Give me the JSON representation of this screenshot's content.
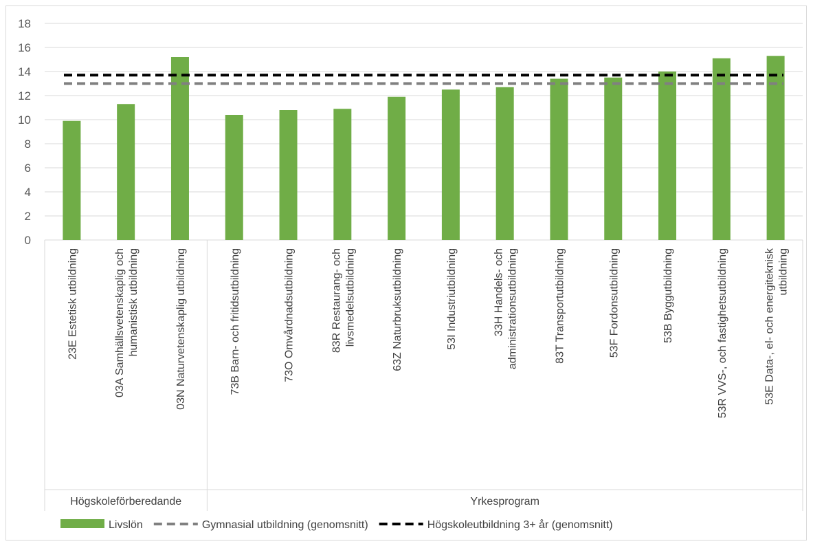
{
  "chart_data": {
    "type": "bar",
    "ylim": [
      0,
      18
    ],
    "ytick_step": 2,
    "grid": true,
    "legend_position": "bottom",
    "categories": [
      [
        "23E Estetisk utbildning"
      ],
      [
        "03A Samhällsvetenskaplig och",
        "humanistisk utbildning"
      ],
      [
        "03N Naturvetenskaplig utbildning"
      ],
      [
        "73B Barn- och fritidsutbildning"
      ],
      [
        "73O Omvårdnadsutbildning"
      ],
      [
        "83R Restaurang- och",
        "livsmedelsutbildning"
      ],
      [
        "63Z Naturbruksutbildning"
      ],
      [
        "53I Industriutbildning"
      ],
      [
        "33H Handels- och",
        "administrationsutbildning"
      ],
      [
        "83T Transportutbildning"
      ],
      [
        "53F Fordonsutbildning"
      ],
      [
        "53B Byggutbildning"
      ],
      [
        "53R VVS-, och fastighetsutbildning"
      ],
      [
        "53E Data-, el- och energiteknisk",
        "utbildning"
      ]
    ],
    "groups": [
      {
        "label": "Högskoleförberedande",
        "count": 3
      },
      {
        "label": "Yrkesprogram",
        "count": 11
      }
    ],
    "series": [
      {
        "name": "Livslön",
        "type": "bar",
        "color": "#70ad47",
        "values": [
          9.9,
          11.3,
          15.2,
          10.4,
          10.8,
          10.9,
          11.9,
          12.5,
          12.7,
          13.4,
          13.5,
          14.0,
          15.1,
          15.3
        ]
      },
      {
        "name": "Gymnasial utbildning (genomsnitt)",
        "type": "line",
        "color": "#808080",
        "dash": "dashed",
        "value": 13.0
      },
      {
        "name": "Högskoleutbildning 3+ år (genomsnitt)",
        "type": "line",
        "color": "#000000",
        "dash": "dashed",
        "value": 13.7
      }
    ]
  }
}
